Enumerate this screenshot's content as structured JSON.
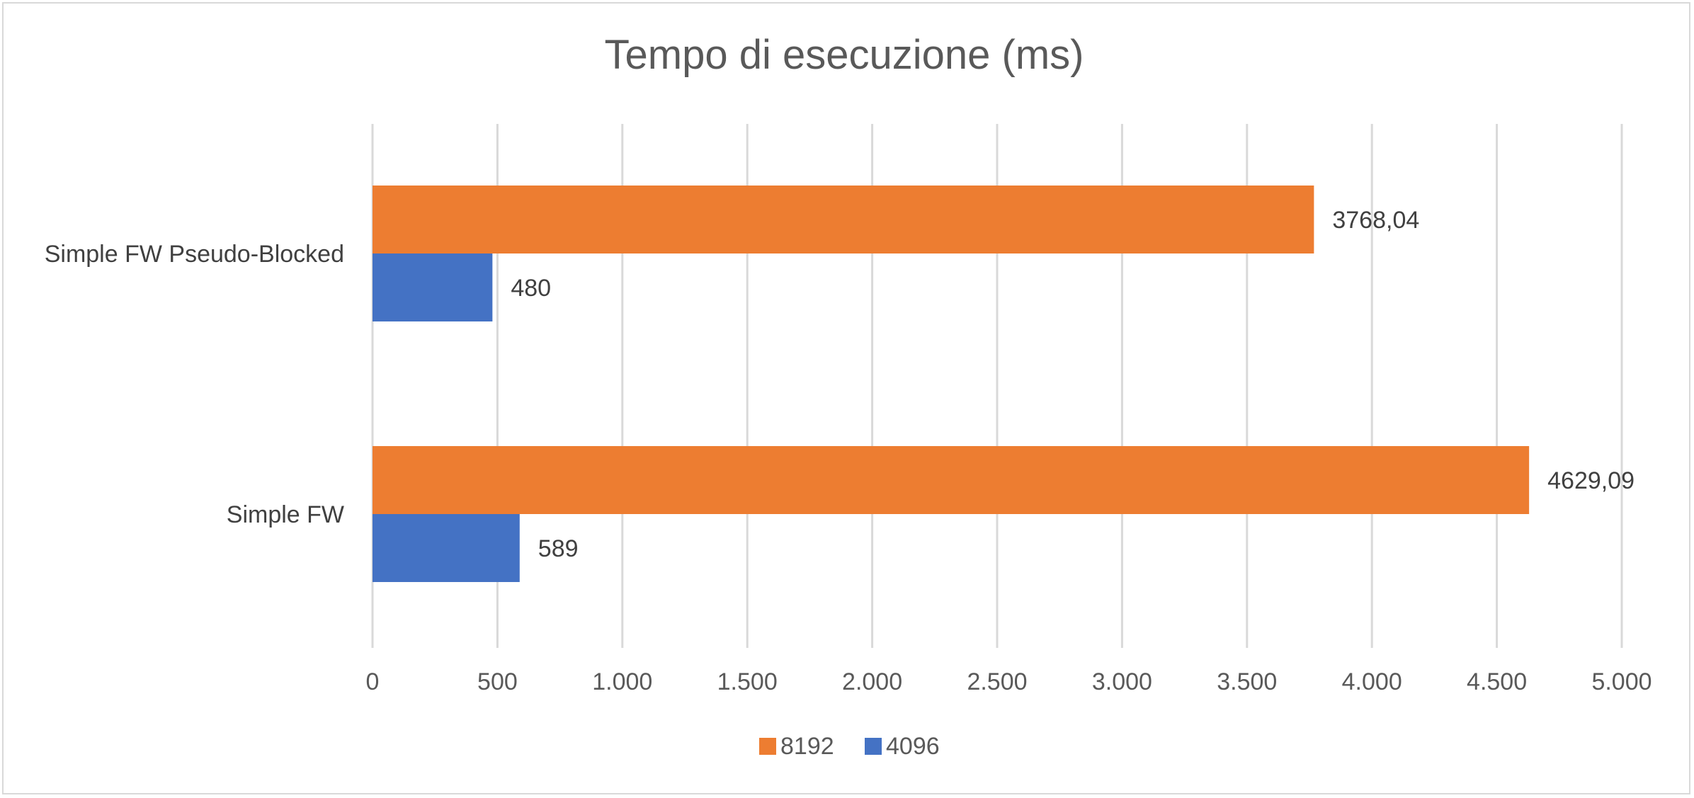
{
  "chart_data": {
    "type": "bar",
    "orientation": "horizontal",
    "title": "Tempo di esecuzione (ms)",
    "xlabel": "",
    "ylabel": "",
    "categories": [
      "Simple FW Pseudo-Blocked",
      "Simple FW"
    ],
    "series": [
      {
        "name": "8192",
        "color": "#ED7D31",
        "values": [
          3768.04,
          4629.09
        ],
        "labels": [
          "3768,04",
          "4629,09"
        ]
      },
      {
        "name": "4096",
        "color": "#4472C4",
        "values": [
          480,
          589
        ],
        "labels": [
          "480",
          "589"
        ]
      }
    ],
    "xlim": [
      0,
      5000
    ],
    "x_ticks": [
      0,
      500,
      1000,
      1500,
      2000,
      2500,
      3000,
      3500,
      4000,
      4500,
      5000
    ],
    "x_tick_labels": [
      "0",
      "500",
      "1.000",
      "1.500",
      "2.000",
      "2.500",
      "3.000",
      "3.500",
      "4.000",
      "4.500",
      "5.000"
    ],
    "grid": "vertical",
    "legend_position": "bottom"
  }
}
